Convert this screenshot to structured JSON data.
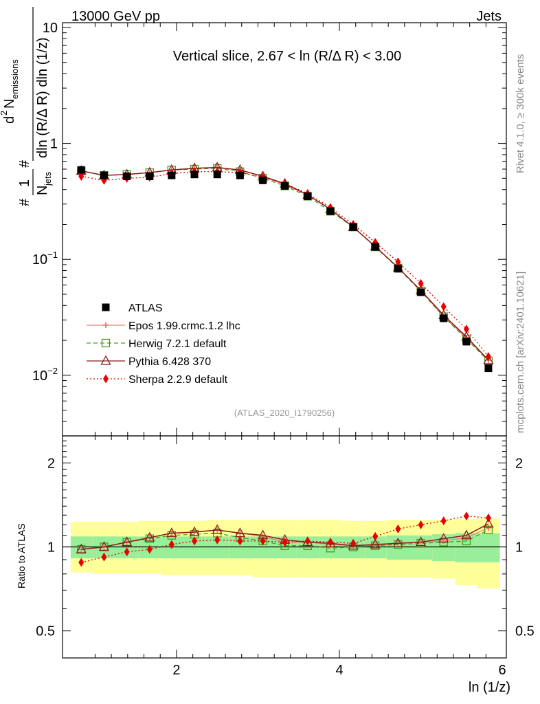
{
  "header": {
    "left": "13000 GeV pp",
    "right": "Jets"
  },
  "side_labels": {
    "rivet": "Rivet 4.1.0, ≥ 300k events",
    "mcplots": "mcplots.cern.ch [arXiv:2401.10621]"
  },
  "chart_data": [
    {
      "type": "scatter",
      "panel": "main",
      "title": "Vertical slice, 2.67 < ln (R/Δ R) < 3.00",
      "watermark": "(ATLAS_2020_I1790256)",
      "ylabel": {
        "frac_num": "1",
        "frac_den": "N",
        "frac_den_sub": "jets",
        "hash1": "#",
        "hash2": "#",
        "d2": "d",
        "d2_sup": "2",
        "n_emis": "N",
        "n_emis_sub": "emissions",
        "den_text": "dln (R/Δ R) dln (1/z)"
      },
      "xlabel": "ln (1/z)",
      "yscale": "log",
      "ylim": [
        0.003,
        11
      ],
      "xlim": [
        0.6,
        6.05
      ],
      "xticks": [
        2,
        4,
        6
      ],
      "yticks": [
        {
          "value": 10,
          "label": "10"
        },
        {
          "value": 1,
          "label": "1"
        },
        {
          "value": 0.1,
          "label": "10",
          "sup": "−1"
        },
        {
          "value": 0.01,
          "label": "10",
          "sup": "−2"
        }
      ],
      "x": [
        0.83,
        1.11,
        1.39,
        1.67,
        1.94,
        2.22,
        2.5,
        2.78,
        3.06,
        3.33,
        3.61,
        3.89,
        4.17,
        4.44,
        4.72,
        5.0,
        5.28,
        5.56,
        5.83
      ],
      "series": [
        {
          "name": "ATLAS",
          "style": "data",
          "color": "#000000",
          "marker": "square-filled",
          "values": [
            0.59,
            0.53,
            0.52,
            0.52,
            0.53,
            0.54,
            0.54,
            0.53,
            0.48,
            0.43,
            0.35,
            0.26,
            0.19,
            0.128,
            0.083,
            0.052,
            0.031,
            0.0195,
            0.0115
          ]
        },
        {
          "name": "Epos 1.99.crmc.1.2 lhc",
          "style": "line",
          "color": "#f08080",
          "marker": "cross",
          "values": [
            0.58,
            0.53,
            0.54,
            0.56,
            0.59,
            0.61,
            0.62,
            0.59,
            0.52,
            0.44,
            0.36,
            0.27,
            0.19,
            0.129,
            0.085,
            0.054,
            0.032,
            0.021,
            0.0135
          ]
        },
        {
          "name": "Herwig 7.2.1 default",
          "style": "dashed",
          "color": "#4a9a1a",
          "marker": "square-open",
          "values": [
            0.58,
            0.53,
            0.54,
            0.56,
            0.59,
            0.6,
            0.61,
            0.57,
            0.5,
            0.43,
            0.35,
            0.26,
            0.19,
            0.128,
            0.084,
            0.053,
            0.032,
            0.0205,
            0.0133
          ]
        },
        {
          "name": "Pythia 6.428 370",
          "style": "solid",
          "color": "#8b1a1a",
          "marker": "triangle-open",
          "values": [
            0.58,
            0.53,
            0.54,
            0.56,
            0.59,
            0.61,
            0.62,
            0.59,
            0.52,
            0.45,
            0.36,
            0.27,
            0.19,
            0.129,
            0.085,
            0.054,
            0.033,
            0.0215,
            0.0135
          ]
        },
        {
          "name": "Sherpa 2.2.9 default",
          "style": "dotted",
          "color": "#e60000",
          "marker": "diamond-filled",
          "values": [
            0.52,
            0.48,
            0.5,
            0.51,
            0.55,
            0.57,
            0.57,
            0.56,
            0.51,
            0.45,
            0.37,
            0.28,
            0.2,
            0.14,
            0.095,
            0.062,
            0.039,
            0.025,
            0.0145
          ]
        }
      ]
    },
    {
      "type": "scatter",
      "panel": "ratio",
      "ylabel": "Ratio to ATLAS",
      "yscale": "log",
      "ylim": [
        0.4,
        2.5
      ],
      "yticks": [
        {
          "value": 2,
          "label": "2"
        },
        {
          "value": 1,
          "label": "1"
        },
        {
          "value": 0.5,
          "label": "0.5"
        }
      ],
      "x": [
        0.83,
        1.11,
        1.39,
        1.67,
        1.94,
        2.22,
        2.5,
        2.78,
        3.06,
        3.33,
        3.61,
        3.89,
        4.17,
        4.44,
        4.72,
        5.0,
        5.28,
        5.56,
        5.83
      ],
      "bin_edges": [
        0.7,
        0.97,
        1.25,
        1.53,
        1.81,
        2.08,
        2.36,
        2.64,
        2.92,
        3.19,
        3.47,
        3.75,
        4.03,
        4.31,
        4.58,
        4.86,
        5.14,
        5.42,
        5.69,
        5.97
      ],
      "band_stat_lo": [
        0.91,
        0.91,
        0.91,
        0.91,
        0.91,
        0.91,
        0.91,
        0.91,
        0.91,
        0.91,
        0.91,
        0.91,
        0.91,
        0.91,
        0.9,
        0.9,
        0.89,
        0.88,
        0.88
      ],
      "band_stat_hi": [
        1.09,
        1.09,
        1.09,
        1.09,
        1.09,
        1.09,
        1.09,
        1.09,
        1.09,
        1.09,
        1.09,
        1.09,
        1.09,
        1.09,
        1.1,
        1.1,
        1.11,
        1.12,
        1.12
      ],
      "band_total_lo": [
        0.81,
        0.8,
        0.8,
        0.8,
        0.79,
        0.79,
        0.79,
        0.79,
        0.78,
        0.78,
        0.78,
        0.78,
        0.78,
        0.78,
        0.78,
        0.78,
        0.77,
        0.73,
        0.71
      ],
      "band_total_hi": [
        1.23,
        1.23,
        1.23,
        1.24,
        1.24,
        1.24,
        1.25,
        1.25,
        1.25,
        1.25,
        1.25,
        1.25,
        1.24,
        1.24,
        1.25,
        1.25,
        1.25,
        1.26,
        1.27
      ],
      "series": [
        {
          "name": "Epos 1.99.crmc.1.2 lhc",
          "values": [
            0.98,
            1.0,
            1.04,
            1.08,
            1.12,
            1.13,
            1.15,
            1.12,
            1.09,
            1.04,
            1.04,
            1.02,
            1.01,
            1.01,
            1.03,
            1.04,
            1.05,
            1.08,
            1.17
          ]
        },
        {
          "name": "Herwig 7.2.1 default",
          "values": [
            0.98,
            1.0,
            1.04,
            1.07,
            1.1,
            1.11,
            1.12,
            1.08,
            1.05,
            1.01,
            1.01,
            0.99,
            1.0,
            1.01,
            1.02,
            1.03,
            1.04,
            1.05,
            1.15
          ]
        },
        {
          "name": "Pythia 6.428 370",
          "values": [
            0.98,
            1.0,
            1.04,
            1.08,
            1.12,
            1.13,
            1.15,
            1.12,
            1.1,
            1.06,
            1.04,
            1.03,
            1.01,
            1.02,
            1.03,
            1.04,
            1.07,
            1.1,
            1.21
          ]
        },
        {
          "name": "Sherpa 2.2.9 default",
          "values": [
            0.88,
            0.92,
            0.96,
            0.98,
            1.02,
            1.05,
            1.06,
            1.05,
            1.05,
            1.04,
            1.05,
            1.04,
            1.03,
            1.09,
            1.16,
            1.2,
            1.24,
            1.29,
            1.27
          ]
        }
      ],
      "xlabel": "ln (1/z)"
    }
  ]
}
